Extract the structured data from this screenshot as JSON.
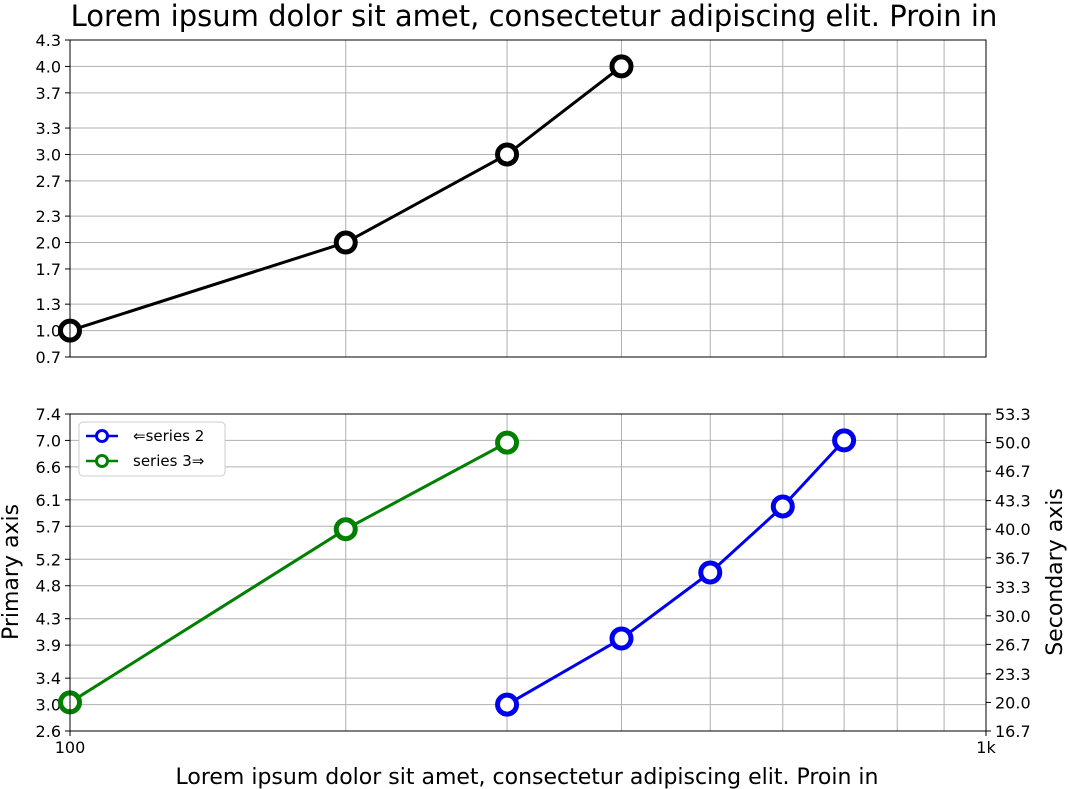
{
  "figure": {
    "title": "Lorem ipsum dolor sit amet, consectetur adipiscing elit. Proin in",
    "xlabel": "Lorem ipsum dolor sit amet, consectetur adipiscing elit. Proin in"
  },
  "chart_data": [
    {
      "type": "line",
      "title": "Lorem ipsum dolor sit amet, consectetur adipiscing elit. Proin in",
      "xscale": "log",
      "xlim": [
        100,
        1000
      ],
      "ylim": [
        0.7,
        4.3
      ],
      "yticks": [
        "0.7",
        "1.0",
        "1.3",
        "1.7",
        "2.0",
        "2.3",
        "2.7",
        "3.0",
        "3.3",
        "3.7",
        "4.0",
        "4.3"
      ],
      "grid": true,
      "series": [
        {
          "color": "#000000",
          "x": [
            100,
            200,
            300,
            400
          ],
          "y": [
            1.0,
            2.0,
            3.0,
            4.0
          ]
        }
      ]
    },
    {
      "type": "line",
      "xlabel": "Lorem ipsum dolor sit amet, consectetur adipiscing elit. Proin in",
      "ylabel": "Primary axis",
      "ylabel_right": "Secondary axis",
      "xscale": "log",
      "xlim": [
        100,
        1000
      ],
      "xticks": [
        "100",
        "1k"
      ],
      "ylim": [
        2.6,
        7.4
      ],
      "yticks": [
        "2.6",
        "3.0",
        "3.4",
        "3.9",
        "4.3",
        "4.8",
        "5.2",
        "5.7",
        "6.1",
        "6.6",
        "7.0",
        "7.4"
      ],
      "ylim_right": [
        16.7,
        53.3
      ],
      "yticks_right": [
        "16.7",
        "20.0",
        "23.3",
        "26.7",
        "30.0",
        "33.3",
        "36.7",
        "40.0",
        "43.3",
        "46.7",
        "50.0",
        "53.3"
      ],
      "grid": true,
      "legend_position": "top-left",
      "series": [
        {
          "name": "⇐series 2",
          "color": "#0000ee",
          "axis": "left",
          "x": [
            300,
            400,
            500,
            600,
            700
          ],
          "y": [
            3.0,
            4.0,
            5.0,
            6.0,
            7.0
          ]
        },
        {
          "name": "series 3⇒",
          "color": "#008000",
          "axis": "right",
          "x": [
            100,
            200,
            300
          ],
          "y": [
            20.0,
            40.0,
            50.0
          ]
        }
      ]
    }
  ]
}
